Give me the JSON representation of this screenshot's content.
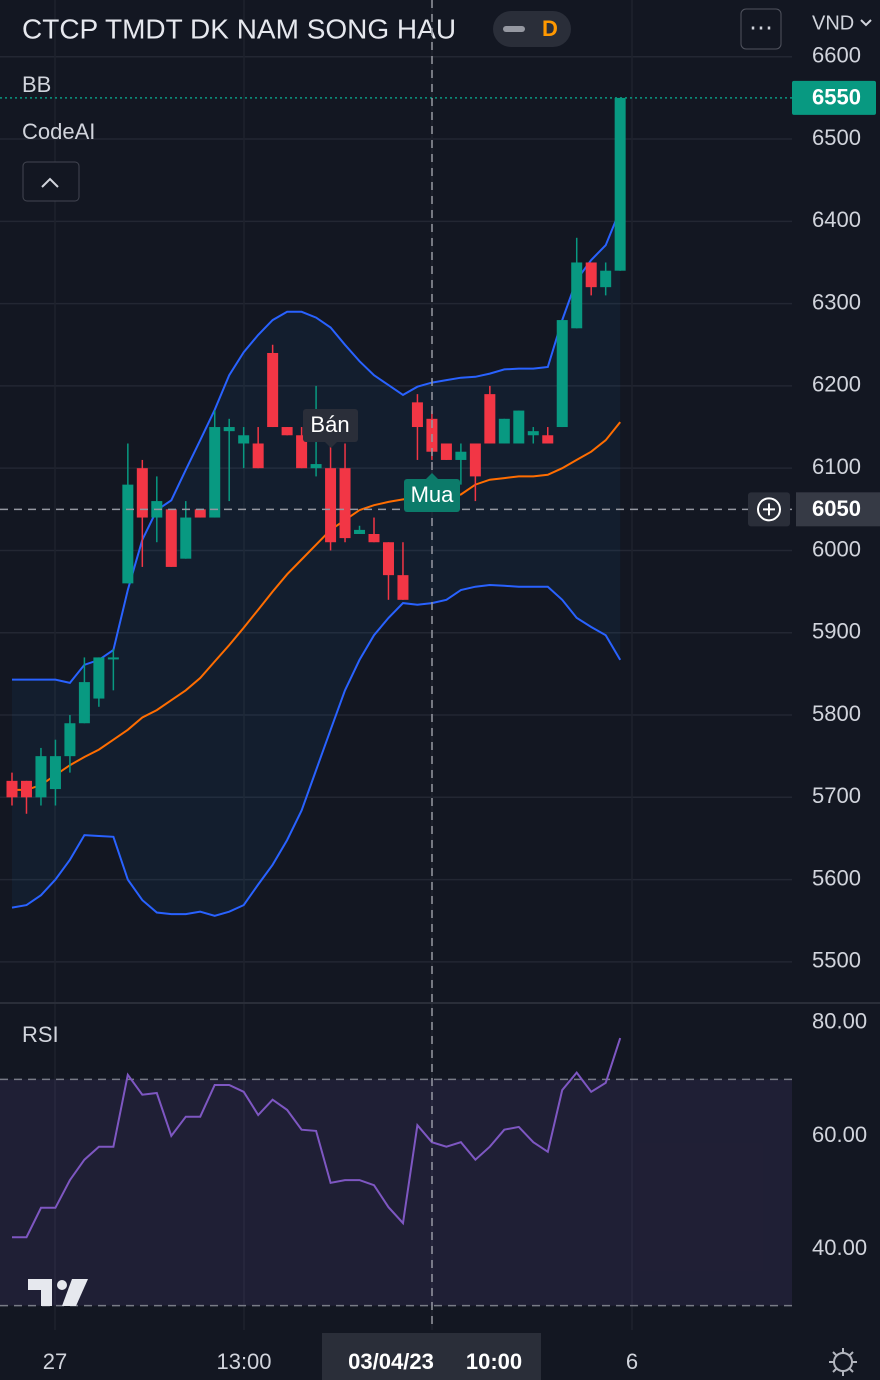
{
  "chart_data": {
    "type": "candlestick",
    "title": "CTCP TMDT DK NAM SONG HAU",
    "interval": "D",
    "currency": "VND",
    "indicator_labels": [
      "BB",
      "CodeAI"
    ],
    "rsi_label": "RSI",
    "annotations": {
      "sell": "Bán",
      "buy": "Mua"
    },
    "x_labels": [
      "27",
      "13:00",
      "03/04/23",
      "10:00",
      "6"
    ],
    "up_color": "#089981",
    "down_color": "#f23645",
    "open": [
      5720,
      5720,
      5700,
      5710,
      5750,
      5790,
      5820,
      5870,
      5960,
      6100,
      6040,
      6050,
      5990,
      6050,
      6040,
      6145,
      6130,
      6130,
      6240,
      6150,
      6140,
      6100,
      6100,
      6100,
      6020,
      6020,
      6010,
      5970,
      6180,
      6160,
      6130,
      6110,
      6130,
      6190,
      6130,
      6130,
      6140,
      6140,
      6150,
      6270,
      6350,
      6320,
      6340
    ],
    "high": [
      5730,
      5720,
      5760,
      5770,
      5800,
      5870,
      5870,
      5880,
      6130,
      6110,
      6090,
      6050,
      6060,
      6050,
      6170,
      6160,
      6150,
      6150,
      6250,
      6150,
      6150,
      6200,
      6140,
      6130,
      6030,
      6040,
      6010,
      6010,
      6190,
      6170,
      6130,
      6130,
      6130,
      6200,
      6160,
      6170,
      6150,
      6150,
      6280,
      6380,
      6350,
      6350,
      6550
    ],
    "low": [
      5690,
      5680,
      5690,
      5690,
      5730,
      5790,
      5810,
      5830,
      5960,
      5980,
      6010,
      5980,
      5990,
      6040,
      6040,
      6060,
      6100,
      6100,
      6150,
      6140,
      6100,
      6090,
      6000,
      6010,
      6020,
      6010,
      5940,
      5940,
      6110,
      6110,
      6110,
      6080,
      6060,
      6130,
      6130,
      6130,
      6130,
      6130,
      6150,
      6270,
      6310,
      6310,
      6340
    ],
    "close": [
      5700,
      5700,
      5750,
      5750,
      5790,
      5840,
      5870,
      5870,
      6080,
      6040,
      6060,
      5980,
      6040,
      6040,
      6150,
      6150,
      6140,
      6100,
      6150,
      6140,
      6100,
      6105,
      6010,
      6015,
      6025,
      6010,
      5970,
      5940,
      6150,
      6120,
      6110,
      6120,
      6090,
      6130,
      6160,
      6170,
      6145,
      6130,
      6280,
      6350,
      6320,
      6340,
      6550
    ],
    "bands": [
      {
        "name": "upper",
        "color": "#2962ff",
        "values": [
          5843,
          5843,
          5843,
          5843,
          5839,
          5861,
          5867,
          5879,
          5952,
          6013,
          6049,
          6061,
          6098,
          6134,
          6171,
          6213,
          6241,
          6262,
          6280,
          6290,
          6290,
          6283,
          6271,
          6250,
          6230,
          6213,
          6201,
          6189,
          6199,
          6204,
          6207,
          6210,
          6211,
          6215,
          6220,
          6221,
          6221,
          6223,
          6280,
          6329,
          6353,
          6371,
          6414
        ]
      },
      {
        "name": "basis",
        "color": "#ff6d00",
        "values": [
          5709,
          5709,
          5715,
          5727,
          5739,
          5749,
          5758,
          5770,
          5782,
          5797,
          5806,
          5818,
          5830,
          5845,
          5865,
          5885,
          5906,
          5928,
          5950,
          5971,
          5989,
          6007,
          6025,
          6037,
          6049,
          6055,
          6059,
          6062,
          6064,
          6065,
          6066,
          6068,
          6080,
          6086,
          6088,
          6090,
          6090,
          6092,
          6100,
          6110,
          6120,
          6134,
          6156
        ]
      },
      {
        "name": "lower",
        "color": "#2962ff",
        "values": [
          5566,
          5569,
          5581,
          5600,
          5624,
          5654,
          5653,
          5652,
          5600,
          5575,
          5560,
          5558,
          5558,
          5561,
          5556,
          5561,
          5569,
          5594,
          5618,
          5648,
          5684,
          5733,
          5782,
          5830,
          5867,
          5897,
          5918,
          5936,
          5934,
          5936,
          5940,
          5952,
          5956,
          5958,
          5957,
          5956,
          5956,
          5956,
          5940,
          5918,
          5907,
          5897,
          5867
        ]
      }
    ],
    "ylim": [
      5450,
      6669
    ],
    "yticks": [
      5500,
      5600,
      5700,
      5800,
      5900,
      6000,
      6100,
      6200,
      6300,
      6400,
      6500,
      6600
    ],
    "crosshair_price": 6050,
    "rsi": {
      "color": "#7e57c2",
      "values": [
        42.1,
        42.1,
        47.3,
        47.3,
        52.2,
        55.8,
        58.1,
        58.1,
        70.8,
        67.3,
        67.6,
        60.0,
        63.4,
        63.4,
        69.0,
        69.0,
        67.8,
        63.7,
        66.4,
        64.6,
        61.1,
        60.9,
        51.7,
        52.2,
        52.2,
        51.3,
        47.4,
        44.6,
        61.9,
        58.9,
        58.1,
        58.9,
        55.8,
        58.1,
        61.1,
        61.6,
        58.9,
        57.2,
        68.1,
        71.2,
        67.8,
        69.4,
        77.3
      ],
      "ylim": [
        25.7,
        83.5
      ],
      "yticks": [
        {
          "value": 40,
          "label": "40.00"
        },
        {
          "value": 60,
          "label": "60.00"
        },
        {
          "value": 80,
          "label": "80.00"
        }
      ],
      "band": [
        30,
        70
      ]
    },
    "grid": true
  }
}
